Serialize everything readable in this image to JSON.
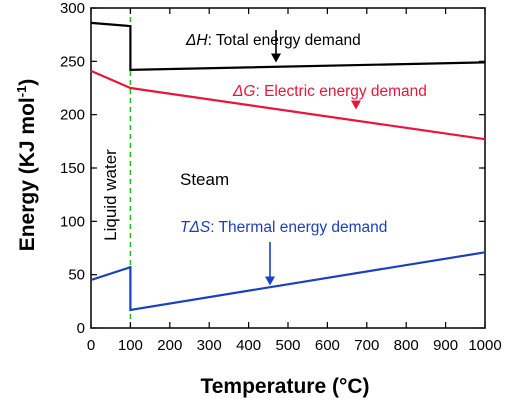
{
  "chart_data": {
    "type": "line",
    "xlabel": "Temperature",
    "xlabel_unit": "(°C)",
    "ylabel": "Energy (KJ mol",
    "ylabel_sup": "-1",
    "ylabel_close": ")",
    "xlim": [
      0,
      1000
    ],
    "ylim": [
      0,
      300
    ],
    "xticks": [
      0,
      100,
      200,
      300,
      400,
      500,
      600,
      700,
      800,
      900,
      1000
    ],
    "yticks": [
      0,
      50,
      100,
      150,
      200,
      250,
      300
    ],
    "grid": false,
    "divider": {
      "x": 100,
      "color": "#22bb22",
      "style": "dashed"
    },
    "region_labels": {
      "liquid": "Liquid water",
      "steam": "Steam"
    },
    "series": [
      {
        "key": "dH",
        "symbol": "ΔH",
        "label": ": Total energy demand",
        "color": "#000000",
        "points": [
          [
            0,
            286
          ],
          [
            100,
            283
          ],
          [
            100,
            242
          ],
          [
            1000,
            249
          ]
        ],
        "annotation_target": [
          475,
          247
        ]
      },
      {
        "key": "dG",
        "symbol": "ΔG",
        "label": ": Electric energy demand",
        "color": "#e8163c",
        "points": [
          [
            0,
            241
          ],
          [
            100,
            225
          ],
          [
            1000,
            177
          ]
        ],
        "annotation_target": [
          680,
          203
        ]
      },
      {
        "key": "TdS",
        "symbol": "TΔS",
        "label": ": Thermal energy demand",
        "color": "#1a3fbf",
        "points": [
          [
            0,
            45
          ],
          [
            100,
            57
          ],
          [
            100,
            17
          ],
          [
            1000,
            71
          ]
        ],
        "annotation_target": [
          470,
          38
        ]
      }
    ]
  }
}
